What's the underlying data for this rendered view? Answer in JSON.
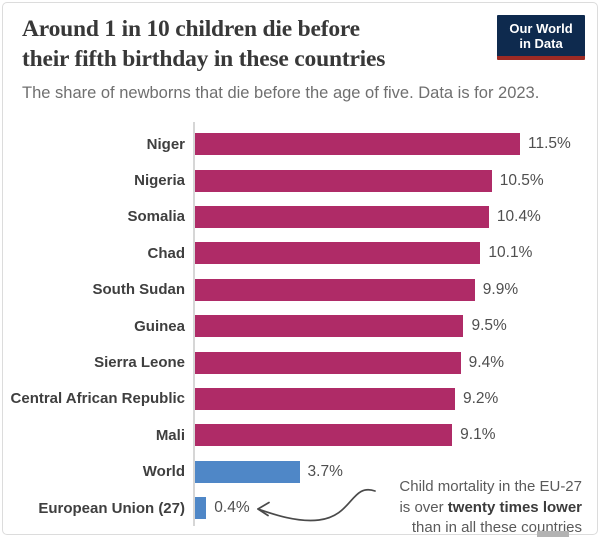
{
  "header": {
    "title_line1": "Around 1 in 10 children die before",
    "title_line2": "their fifth birthday in these countries",
    "subtitle": "The share of newborns that die before the age of five. Data is for 2023.",
    "logo": {
      "line1": "Our World",
      "line2": "in Data",
      "bg_color": "#0e2a4e",
      "accent_color": "#9c2a24"
    }
  },
  "chart_data": {
    "type": "bar",
    "orientation": "horizontal",
    "title": "Around 1 in 10 children die before their fifth birthday in these countries",
    "subtitle": "The share of newborns that die before the age of five. Data is for 2023.",
    "categories": [
      "Niger",
      "Nigeria",
      "Somalia",
      "Chad",
      "South Sudan",
      "Guinea",
      "Sierra Leone",
      "Central African Republic",
      "Mali",
      "World",
      "European Union (27)"
    ],
    "values": [
      11.5,
      10.5,
      10.4,
      10.1,
      9.9,
      9.5,
      9.4,
      9.2,
      9.1,
      3.7,
      0.4
    ],
    "value_labels": [
      "11.5%",
      "10.5%",
      "10.4%",
      "10.1%",
      "9.9%",
      "9.5%",
      "9.4%",
      "9.2%",
      "9.1%",
      "3.7%",
      "0.4%"
    ],
    "bar_colors": [
      "#af2b67",
      "#af2b67",
      "#af2b67",
      "#af2b67",
      "#af2b67",
      "#af2b67",
      "#af2b67",
      "#af2b67",
      "#af2b67",
      "#4f87c7",
      "#4f87c7"
    ],
    "unit": "%",
    "xlim": [
      0,
      12.3
    ],
    "grid": false,
    "legend": false,
    "value_axis_visible": false
  },
  "annotation": {
    "line1": "Child mortality in the EU-27",
    "line2_prefix": "is over ",
    "line2_bold": "twenty times lower",
    "line3": "than in all these countries"
  }
}
